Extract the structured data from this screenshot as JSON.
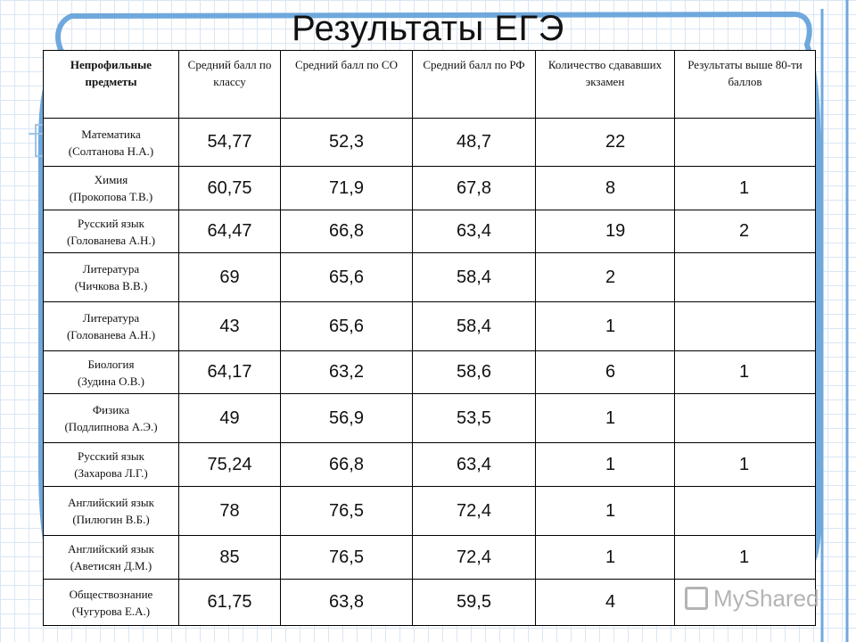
{
  "title": "Результаты ЕГЭ",
  "headers": [
    "Непрофильные предметы",
    "Средний балл по классу",
    "Средний балл по СО",
    "Средний балл по РФ",
    "Количество сдававших экзамен",
    "Результаты выше 80-ти баллов"
  ],
  "rows": [
    {
      "subject": "Математика",
      "teacher": "(Солтанова Н.А.)",
      "class_avg": "54,77",
      "so_avg": "52,3",
      "rf_avg": "48,7",
      "count": "22",
      "above80": ""
    },
    {
      "subject": "Химия",
      "teacher": "(Прокопова Т.В.)",
      "class_avg": "60,75",
      "so_avg": "71,9",
      "rf_avg": "67,8",
      "count": "8",
      "above80": "1"
    },
    {
      "subject": "Русский язык",
      "teacher": "(Голованева А.Н.)",
      "class_avg": "64,47",
      "so_avg": "66,8",
      "rf_avg": "63,4",
      "count": "19",
      "above80": "2"
    },
    {
      "subject": "Литература",
      "teacher": "(Чичкова В.В.)",
      "class_avg": "69",
      "so_avg": "65,6",
      "rf_avg": "58,4",
      "count": "2",
      "above80": ""
    },
    {
      "subject": "Литература",
      "teacher": "(Голованева А.Н.)",
      "class_avg": "43",
      "so_avg": "65,6",
      "rf_avg": "58,4",
      "count": "1",
      "above80": ""
    },
    {
      "subject": "Биология",
      "teacher": "(Зудина О.В.)",
      "class_avg": "64,17",
      "so_avg": "63,2",
      "rf_avg": "58,6",
      "count": "6",
      "above80": "1"
    },
    {
      "subject": "Физика",
      "teacher": "(Подлипнова А.Э.)",
      "class_avg": "49",
      "so_avg": "56,9",
      "rf_avg": "53,5",
      "count": "1",
      "above80": ""
    },
    {
      "subject": "Русский язык",
      "teacher": "(Захарова Л.Г.)",
      "class_avg": "75,24",
      "so_avg": "66,8",
      "rf_avg": "63,4",
      "count": "1",
      "above80": "1"
    },
    {
      "subject": "Английский язык",
      "teacher": "(Пилюгин В.Б.)",
      "class_avg": "78",
      "so_avg": "76,5",
      "rf_avg": "72,4",
      "count": "1",
      "above80": ""
    },
    {
      "subject": "Английский язык",
      "teacher": "(Аветисян Д.М.)",
      "class_avg": "85",
      "so_avg": "76,5",
      "rf_avg": "72,4",
      "count": "1",
      "above80": "1"
    },
    {
      "subject": "Обществознание",
      "teacher": "(Чугурова Е.А.)",
      "class_avg": "61,75",
      "so_avg": "63,8",
      "rf_avg": "59,5",
      "count": "4",
      "above80": ""
    }
  ],
  "watermark": "MyShared",
  "colors": {
    "frame": "#6fa8dc",
    "grid": "#d9e6f4",
    "text": "#111111"
  }
}
